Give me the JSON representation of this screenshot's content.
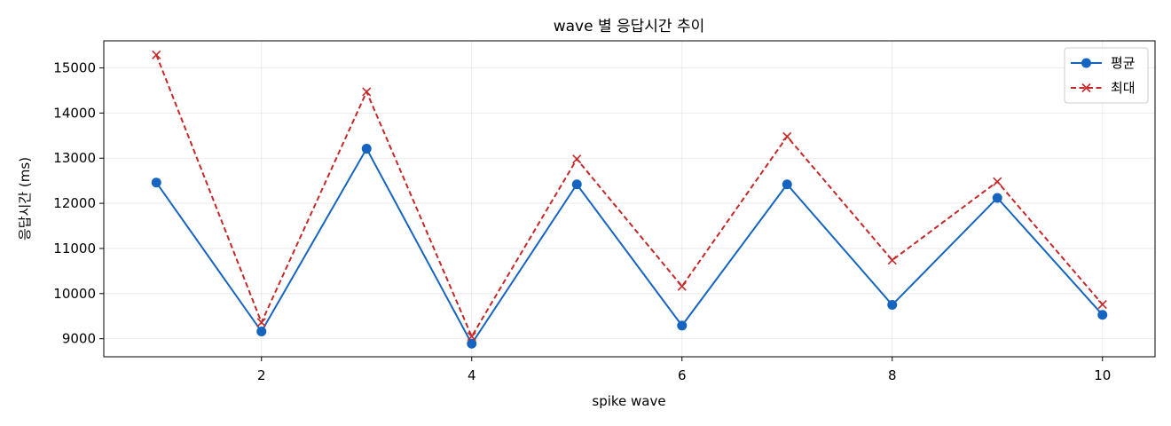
{
  "chart_data": {
    "type": "line",
    "title": "wave 별 응답시간 추이",
    "xlabel": "spike wave",
    "ylabel": "응답시간 (ms)",
    "x": [
      1,
      2,
      3,
      4,
      5,
      6,
      7,
      8,
      9,
      10
    ],
    "xlim": [
      0.5,
      10.5
    ],
    "ylim": [
      8600,
      15600
    ],
    "xticks": [
      2,
      4,
      6,
      8,
      10
    ],
    "yticks": [
      9000,
      10000,
      11000,
      12000,
      13000,
      14000,
      15000
    ],
    "grid": true,
    "legend_position": "top-right",
    "series": [
      {
        "name": "평균",
        "color": "#1565c0",
        "style": "solid",
        "marker": "circle",
        "values": [
          12460,
          9160,
          13210,
          8890,
          12420,
          9290,
          12420,
          9750,
          12120,
          9530
        ]
      },
      {
        "name": "최대",
        "color": "#c62828",
        "style": "dashed",
        "marker": "x",
        "values": [
          15290,
          9360,
          14470,
          9050,
          12980,
          10160,
          13480,
          10740,
          12480,
          9760
        ]
      }
    ]
  }
}
